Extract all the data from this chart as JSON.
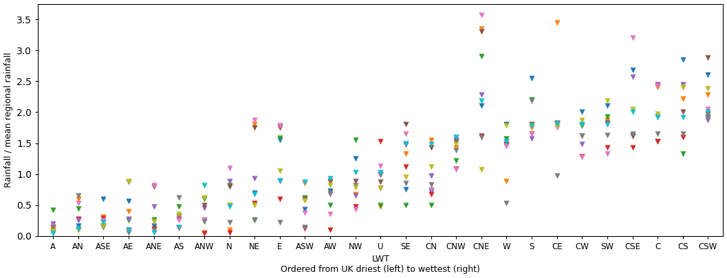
{
  "lwt_categories": [
    "A",
    "AN",
    "ASE",
    "AE",
    "ANE",
    "AS",
    "ANW",
    "N",
    "NE",
    "E",
    "ASW",
    "AW",
    "NW",
    "U",
    "SE",
    "CN",
    "CNW",
    "CNE",
    "W",
    "S",
    "CE",
    "CW",
    "SW",
    "CSE",
    "C",
    "CS",
    "CSW"
  ],
  "ylabel": "Rainfall / mean regional rainfall",
  "xlabel": "LWT",
  "xlabel2": "Ordered from UK driest (left) to wettest (right)",
  "ylim": [
    0,
    3.75
  ],
  "yticks": [
    0.0,
    0.5,
    1.0,
    1.5,
    2.0,
    2.5,
    3.0,
    3.5
  ],
  "regions": [
    {
      "name": "blue",
      "color": "#1f77b4",
      "values": [
        0.05,
        0.16,
        0.6,
        0.56,
        0.17,
        0.26,
        0.24,
        0.5,
        0.7,
        1.55,
        0.43,
        0.73,
        1.25,
        1.0,
        0.75,
        0.72,
        1.6,
        2.1,
        1.8,
        2.55,
        1.8,
        2.0,
        2.1,
        2.68,
        1.93,
        2.85,
        2.6
      ]
    },
    {
      "name": "orange",
      "color": "#ff7f0e",
      "values": [
        0.1,
        0.6,
        0.31,
        0.4,
        0.1,
        0.13,
        0.05,
        0.1,
        1.8,
        1.78,
        0.85,
        0.87,
        0.67,
        0.47,
        1.33,
        1.55,
        1.43,
        3.35,
        0.88,
        1.75,
        3.45,
        1.78,
        1.87,
        1.62,
        2.4,
        2.22,
        2.28
      ]
    },
    {
      "name": "green",
      "color": "#2ca02c",
      "values": [
        0.42,
        0.44,
        0.23,
        0.25,
        0.26,
        0.47,
        0.6,
        0.82,
        0.25,
        1.58,
        0.62,
        0.5,
        1.55,
        0.5,
        0.5,
        0.5,
        1.22,
        2.9,
        1.57,
        2.2,
        1.82,
        1.78,
        1.93,
        1.62,
        1.53,
        1.33,
        1.9
      ]
    },
    {
      "name": "red",
      "color": "#d62728",
      "values": [
        0.13,
        0.28,
        0.29,
        0.1,
        0.12,
        0.13,
        0.04,
        0.05,
        0.53,
        0.6,
        0.12,
        0.1,
        0.48,
        1.53,
        1.12,
        0.68,
        1.08,
        1.62,
        1.47,
        1.65,
        1.82,
        1.28,
        1.43,
        1.43,
        1.53,
        1.6,
        1.97
      ]
    },
    {
      "name": "purple",
      "color": "#9467bd",
      "values": [
        0.2,
        0.25,
        0.17,
        0.28,
        0.47,
        0.28,
        0.45,
        0.88,
        0.93,
        0.88,
        0.57,
        0.67,
        0.65,
        0.77,
        1.47,
        0.97,
        1.52,
        2.28,
        1.53,
        1.57,
        1.8,
        1.48,
        1.8,
        2.57,
        2.45,
        2.45,
        1.87
      ]
    },
    {
      "name": "brown",
      "color": "#8c564b",
      "values": [
        0.07,
        0.1,
        0.14,
        0.87,
        0.8,
        0.32,
        0.5,
        0.8,
        1.75,
        1.75,
        0.6,
        0.88,
        0.88,
        0.87,
        1.8,
        1.43,
        1.55,
        3.3,
        1.48,
        1.8,
        1.83,
        1.62,
        1.83,
        1.62,
        2.43,
        2.0,
        2.88
      ]
    },
    {
      "name": "pink",
      "color": "#e377c2",
      "values": [
        0.15,
        0.53,
        0.25,
        0.08,
        0.82,
        0.25,
        0.27,
        1.1,
        1.87,
        1.78,
        0.37,
        0.35,
        0.43,
        1.13,
        1.65,
        0.75,
        1.07,
        3.57,
        1.45,
        1.65,
        1.75,
        1.27,
        1.33,
        3.2,
        2.43,
        2.4,
        2.05
      ]
    },
    {
      "name": "gray",
      "color": "#7f7f7f",
      "values": [
        0.14,
        0.65,
        0.17,
        0.05,
        0.1,
        0.62,
        0.23,
        0.22,
        0.27,
        0.22,
        0.14,
        0.7,
        0.82,
        0.98,
        0.85,
        0.83,
        1.38,
        1.6,
        0.53,
        2.18,
        0.97,
        1.62,
        1.63,
        1.65,
        1.65,
        1.65,
        1.93
      ]
    },
    {
      "name": "yellow-green",
      "color": "#bcbd22",
      "values": [
        0.08,
        0.1,
        0.17,
        0.88,
        0.23,
        0.35,
        0.62,
        0.5,
        0.5,
        1.05,
        0.57,
        0.82,
        0.78,
        0.77,
        0.95,
        1.12,
        1.48,
        1.07,
        1.78,
        1.78,
        1.77,
        1.87,
        2.18,
        2.05,
        1.97,
        2.4,
        2.38
      ]
    },
    {
      "name": "cyan",
      "color": "#17becf",
      "values": [
        0.04,
        0.12,
        0.22,
        0.1,
        0.05,
        0.14,
        0.82,
        0.47,
        0.67,
        0.9,
        0.87,
        0.93,
        1.03,
        1.03,
        1.5,
        1.48,
        1.6,
        2.18,
        1.53,
        1.78,
        1.82,
        1.8,
        1.8,
        2.0,
        1.92,
        1.92,
        2.0
      ]
    }
  ]
}
